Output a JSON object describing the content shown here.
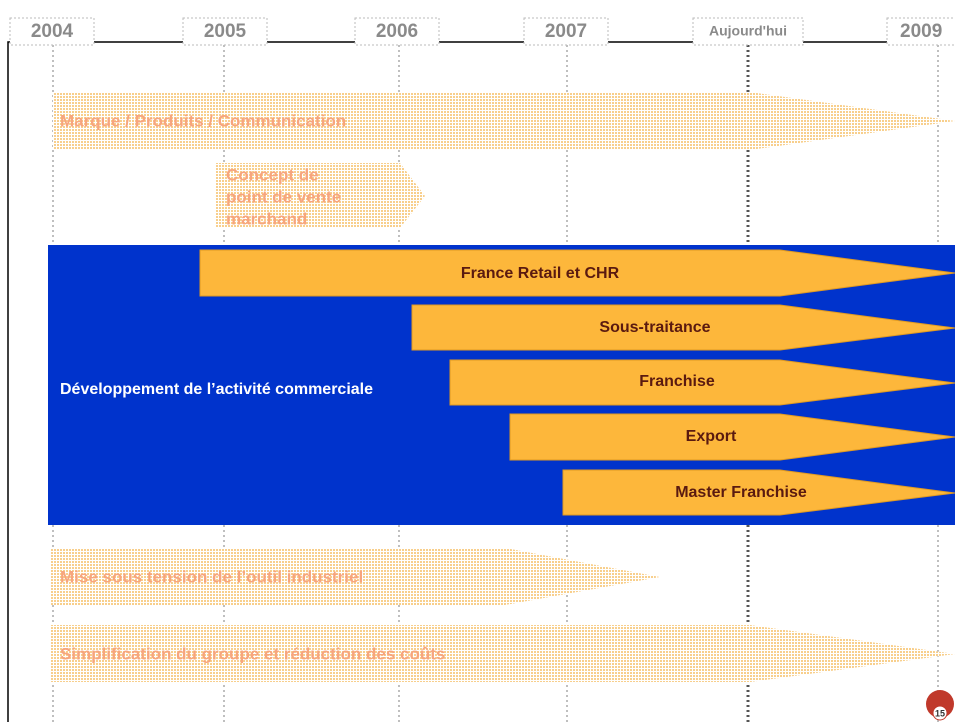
{
  "timeline": {
    "years": [
      "2004",
      "2005",
      "2006",
      "2007",
      "Aujourd'hui",
      "2009"
    ],
    "streams": [
      {
        "label": "Marque / Produits / Communication"
      },
      {
        "label": [
          "Concept de",
          "point de vente",
          "marchand"
        ]
      },
      {
        "label": "Mise sous tension de l’outil industriel"
      },
      {
        "label": "Simplification du groupe et réduction des coûts"
      }
    ],
    "commercial": {
      "label": "Développement de l’activité commerciale",
      "arrows": [
        "France Retail et CHR",
        "Sous-traitance",
        "Franchise",
        "Export",
        "Master Franchise"
      ]
    },
    "page_number": "15"
  }
}
